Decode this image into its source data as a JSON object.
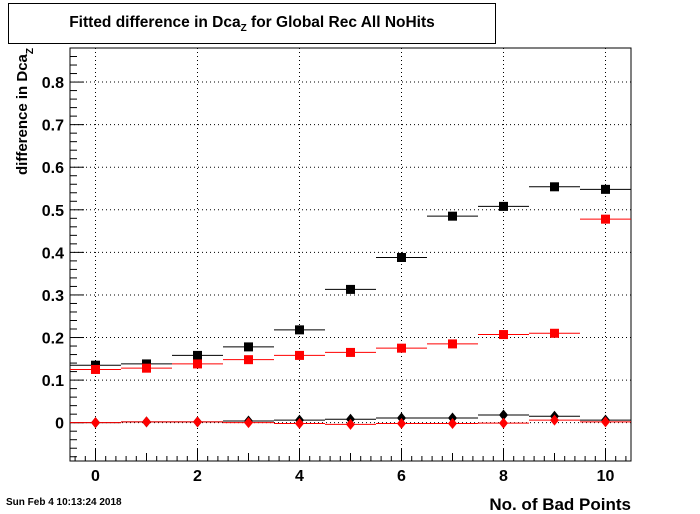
{
  "title_main": "Fitted difference in Dca",
  "title_sub": "Z",
  "title_rest": " for Global Rec All NoHits",
  "footer_timestamp": "Sun Feb  4 10:13:24 2018",
  "chart_data": {
    "type": "scatter",
    "xlabel": "No. of Bad Points",
    "ylabel_main": "difference in Dca",
    "ylabel_sub": "Z",
    "xlim": [
      -0.5,
      10.5
    ],
    "ylim": [
      -0.09,
      0.88
    ],
    "xticks": [
      0,
      2,
      4,
      6,
      8,
      10
    ],
    "yticks": [
      0,
      0.1,
      0.2,
      0.3,
      0.4,
      0.5,
      0.6,
      0.7,
      0.8
    ],
    "grid": true,
    "series": [
      {
        "marker": "square",
        "color": "#000000",
        "x": [
          0,
          1,
          2,
          3,
          4,
          5,
          6,
          7,
          8,
          9,
          10
        ],
        "y": [
          0.135,
          0.138,
          0.158,
          0.178,
          0.218,
          0.313,
          0.388,
          0.485,
          0.508,
          0.554,
          0.548
        ]
      },
      {
        "marker": "square",
        "color": "#ff0000",
        "x": [
          0,
          1,
          2,
          3,
          4,
          5,
          6,
          7,
          8,
          9,
          10
        ],
        "y": [
          0.125,
          0.128,
          0.138,
          0.148,
          0.158,
          0.165,
          0.175,
          0.185,
          0.207,
          0.21,
          0.478
        ]
      },
      {
        "marker": "diamond",
        "color": "#000000",
        "x": [
          0,
          1,
          2,
          3,
          4,
          5,
          6,
          7,
          8,
          9,
          10
        ],
        "y": [
          0.0,
          0.002,
          0.002,
          0.004,
          0.006,
          0.008,
          0.011,
          0.011,
          0.018,
          0.015,
          0.006
        ]
      },
      {
        "marker": "diamond",
        "color": "#ff0000",
        "x": [
          0,
          1,
          2,
          3,
          4,
          5,
          6,
          7,
          8,
          9,
          10
        ],
        "y": [
          0.0,
          0.002,
          0.002,
          0.0,
          -0.002,
          -0.004,
          -0.002,
          -0.002,
          -0.001,
          0.006,
          0.002
        ]
      }
    ]
  }
}
